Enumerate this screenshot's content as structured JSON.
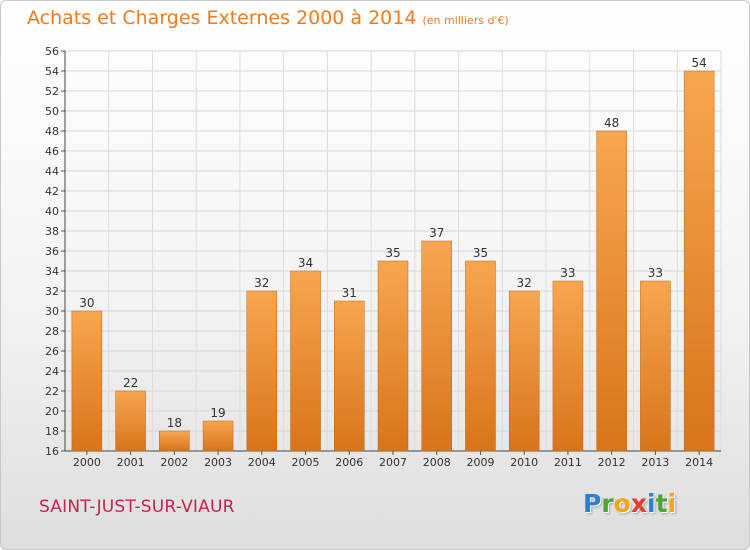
{
  "page": {
    "title": "Achats et Charges Externes 2000 à 2014",
    "unit": "(en milliers d'€)",
    "commune": "SAINT-JUST-SUR-VIAUR",
    "logo": {
      "letters": [
        {
          "char": "P",
          "color": "#2f7fd0"
        },
        {
          "char": "r",
          "color": "#4aa634"
        },
        {
          "char": "o",
          "color": "#f2a516"
        },
        {
          "char": "x",
          "color": "#e63c2e"
        },
        {
          "char": "i",
          "color": "#2f7fd0"
        },
        {
          "char": "t",
          "color": "#4aa634"
        },
        {
          "char": "i",
          "color": "#f2a516"
        }
      ]
    }
  },
  "chart_data": {
    "type": "bar",
    "title": "Achats et Charges Externes 2000 à 2014",
    "unit": "(en milliers d'€)",
    "categories": [
      "2000",
      "2001",
      "2002",
      "2003",
      "2004",
      "2005",
      "2006",
      "2007",
      "2008",
      "2009",
      "2010",
      "2011",
      "2012",
      "2013",
      "2014"
    ],
    "values": [
      30,
      22,
      18,
      19,
      32,
      34,
      31,
      35,
      37,
      35,
      32,
      33,
      48,
      33,
      54
    ],
    "data_labels": [
      "30",
      "22",
      "18",
      "19",
      "32",
      "34",
      "31",
      "35",
      "37",
      "35",
      "32",
      "33",
      "48",
      "33",
      "54"
    ],
    "ylim": [
      16,
      56
    ],
    "yticks": [
      16,
      18,
      20,
      22,
      24,
      26,
      28,
      30,
      32,
      34,
      36,
      38,
      40,
      42,
      44,
      46,
      48,
      50,
      52,
      54,
      56
    ],
    "grid": true,
    "bar_color_top": "#f7a650",
    "bar_color_bottom": "#d8741a"
  }
}
